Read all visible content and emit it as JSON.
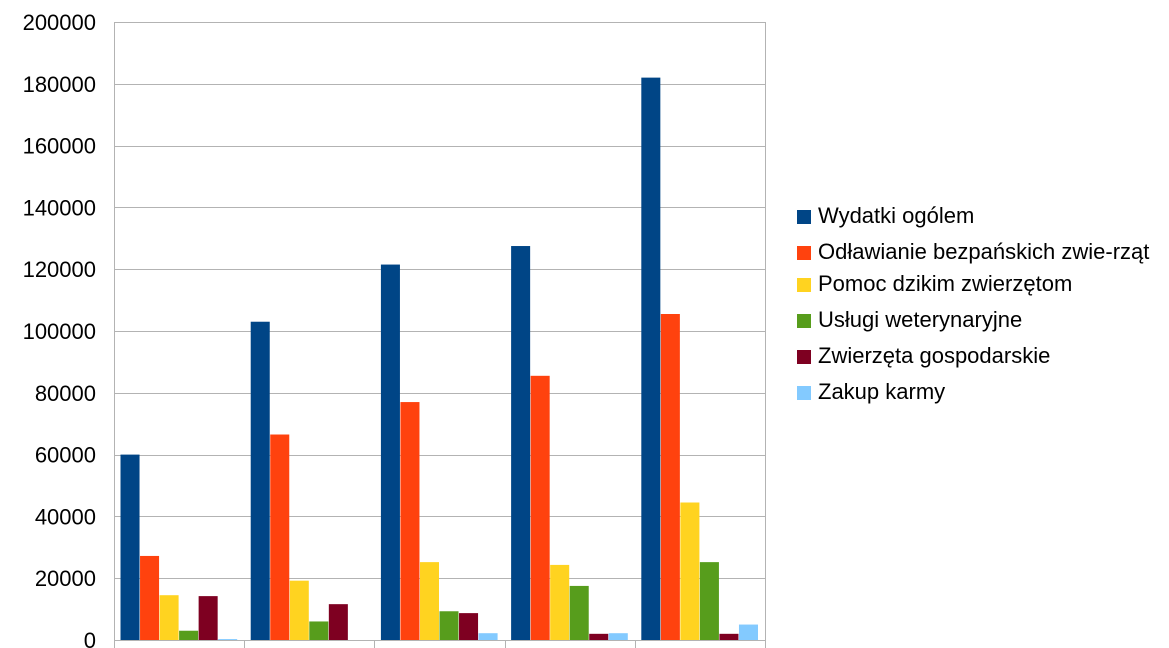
{
  "chart_data": {
    "type": "bar",
    "title": "",
    "xlabel": "",
    "ylabel": "",
    "categories": [
      "",
      "",
      "",
      "",
      ""
    ],
    "ylim": [
      0,
      200000
    ],
    "yticks": [
      0,
      20000,
      40000,
      60000,
      80000,
      100000,
      120000,
      140000,
      160000,
      180000,
      200000
    ],
    "grid": true,
    "legend_position": "right",
    "series": [
      {
        "name": "Wydatki ogólem",
        "color": "#004586",
        "values": [
          60000,
          103000,
          121500,
          127500,
          182000
        ]
      },
      {
        "name": "Odławianie bezpańskich zwie-rząt",
        "color": "#ff420e",
        "values": [
          27200,
          66500,
          77000,
          85500,
          105500
        ]
      },
      {
        "name": "Pomoc dzikim zwierzętom",
        "color": "#ffd320",
        "values": [
          14500,
          19200,
          25200,
          24300,
          44500
        ]
      },
      {
        "name": "Usługi weterynaryjne",
        "color": "#579d1c",
        "values": [
          3000,
          6000,
          9300,
          17500,
          25200
        ]
      },
      {
        "name": "Zwierzęta gospodarskie",
        "color": "#7e0021",
        "values": [
          14200,
          11600,
          8700,
          2000,
          2000
        ]
      },
      {
        "name": "Zakup karmy",
        "color": "#83caff",
        "values": [
          300,
          0,
          2200,
          2200,
          5000
        ]
      }
    ]
  }
}
